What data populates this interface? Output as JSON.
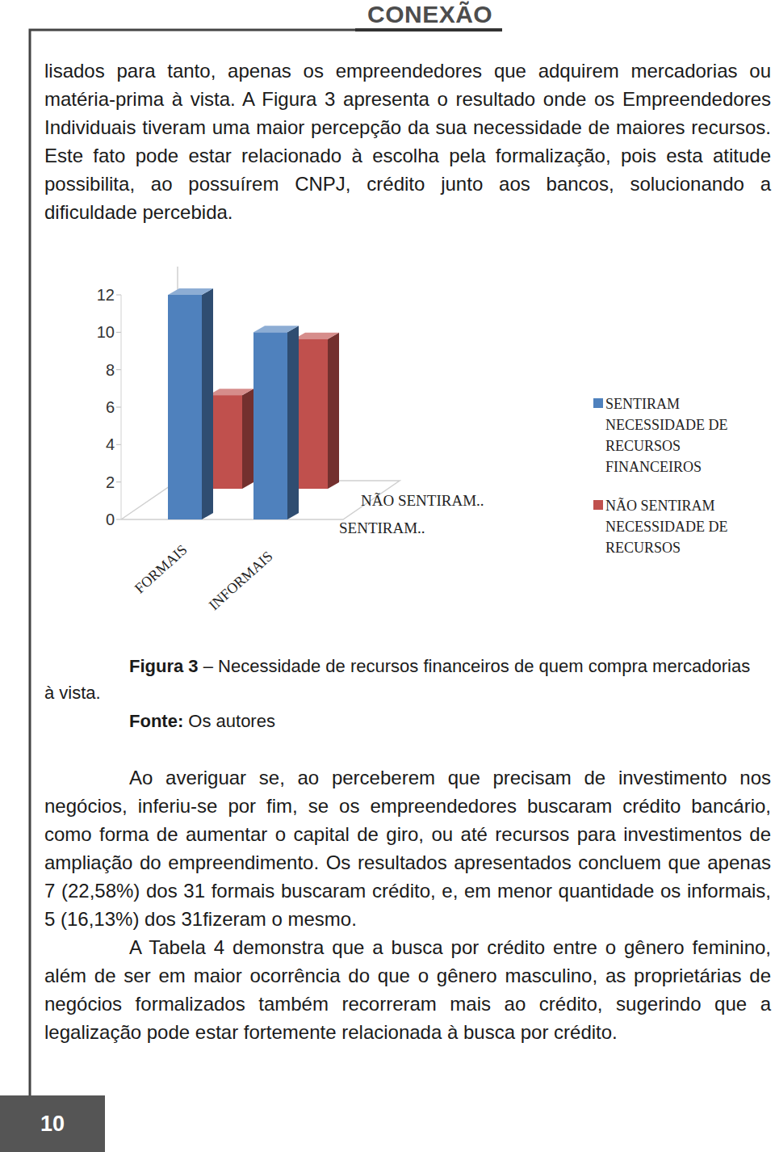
{
  "header": "CONEXÃO",
  "paragraphs": [
    "lisados para tanto, apenas os empreendedores que adquirem mercadorias ou matéria-prima à vista. A Figura 3 apresenta o resultado onde os Empreendedores Individuais tiveram uma maior percepção da sua necessidade de maiores recursos. Este fato pode estar relacionado à escolha pela formalização, pois esta atitude possibilita, ao possuírem CNPJ, crédito junto aos bancos, solucionando a dificuldade percebida."
  ],
  "chart_data": {
    "type": "bar",
    "categories": [
      "FORMAIS",
      "INFORMAIS"
    ],
    "series": [
      {
        "name": "SENTIRAM NECESSIDADE DE RECURSOS FINANCEIROS",
        "color": "#4f81bd",
        "values": [
          12,
          10
        ]
      },
      {
        "name": "NÃO SENTIRAM NECESSIDADE DE RECURSOS",
        "color": "#c0504d",
        "values": [
          5,
          8
        ]
      }
    ],
    "annotations": [
      "SENTIRAM..",
      "NÃO SENTIRAM.."
    ],
    "ylim": [
      0,
      12
    ],
    "yticks": [
      0,
      2,
      4,
      6,
      8,
      10,
      12
    ],
    "grid": false,
    "legend": "right"
  },
  "caption": {
    "label": "Figura 3",
    "text": "– Necessidade de recursos financeiros de quem compra mercadorias",
    "continuation": "à vista."
  },
  "source": {
    "label": "Fonte:",
    "text": "Os autores"
  },
  "paragraphs_after": [
    "Ao averiguar se, ao perceberem que precisam de investimento nos negócios, inferiu-se por fim, se os empreendedores buscaram crédito bancário, como forma de aumentar o capital de giro, ou até recursos para investimentos de ampliação do empreendimento. Os resultados apresentados concluem que apenas 7 (22,58%) dos 31 formais buscaram crédito, e, em menor quantidade os informais, 5 (16,13%) dos 31fizeram o mesmo.",
    "A Tabela 4 demonstra que a busca por crédito entre o gênero feminino, além de ser em maior ocorrência do que o gênero masculino, as proprietárias de negócios formalizados também recorreram mais ao crédito, sugerindo que a legalização pode estar fortemente relacionada à busca por crédito."
  ],
  "page_number": 10
}
